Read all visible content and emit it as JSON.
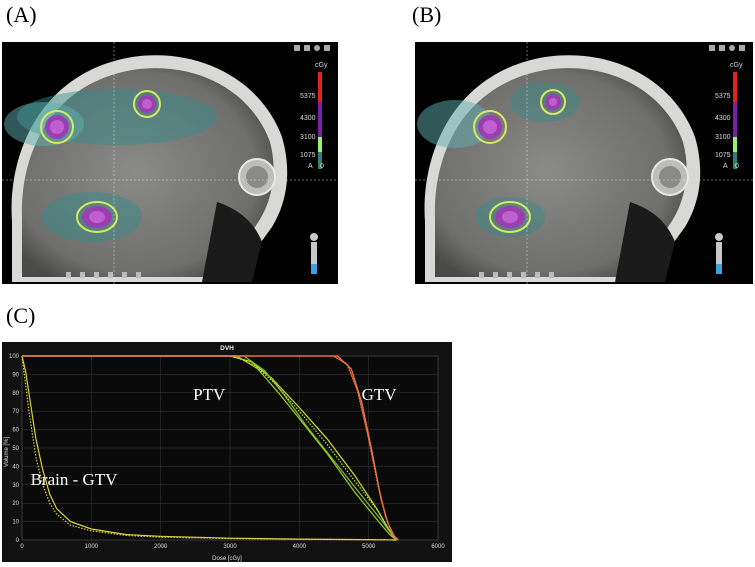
{
  "panels": {
    "a_label": "(A)",
    "b_label": "(B)",
    "c_label": "(C)"
  },
  "colorbar": {
    "unit": "cGy",
    "ticks": [
      "5375",
      "4300",
      "3100",
      "1075"
    ],
    "letter": "A",
    "zero": "0",
    "colors": [
      "#e0241c",
      "#7a1fa8",
      "#9cf06a",
      "#2f7f7a"
    ]
  },
  "chart_data": {
    "type": "line",
    "title": "DVH",
    "xlabel": "Dose [cGy]",
    "ylabel": "Volume [%]",
    "xlim": [
      0,
      6000
    ],
    "ylim": [
      0,
      100
    ],
    "xticks": [
      0,
      1000,
      2000,
      3000,
      4000,
      5000,
      6000
    ],
    "yticks": [
      0,
      10,
      20,
      30,
      40,
      50,
      60,
      70,
      80,
      90,
      100
    ],
    "grid": true,
    "annotations": [
      {
        "text": "PTV",
        "x": 2700,
        "y": 76
      },
      {
        "text": "GTV",
        "x": 5150,
        "y": 76
      },
      {
        "text": "Brain - GTV",
        "x": 750,
        "y": 30
      }
    ],
    "series": [
      {
        "group": "Brain - GTV",
        "color": "#d8d040",
        "style": "solid",
        "x": [
          0,
          50,
          100,
          200,
          300,
          400,
          500,
          700,
          1000,
          1500,
          2000,
          3000,
          4000,
          5000,
          5400
        ],
        "y": [
          100,
          92,
          80,
          55,
          38,
          25,
          17,
          10,
          6,
          3,
          2,
          1,
          0.5,
          0.2,
          0
        ]
      },
      {
        "group": "Brain - GTV",
        "color": "#d8d040",
        "style": "dotted",
        "x": [
          0,
          50,
          100,
          200,
          300,
          400,
          500,
          700,
          1000,
          1500,
          2000,
          3000,
          4000,
          5000,
          5400
        ],
        "y": [
          100,
          85,
          70,
          45,
          30,
          20,
          14,
          8,
          5,
          2.5,
          1.5,
          0.8,
          0.4,
          0.1,
          0
        ]
      },
      {
        "group": "PTV",
        "color": "#c8e030",
        "style": "solid",
        "x": [
          0,
          3000,
          3300,
          3600,
          4000,
          4400,
          4800,
          5100,
          5300,
          5400
        ],
        "y": [
          100,
          100,
          97,
          88,
          72,
          55,
          35,
          18,
          5,
          0
        ]
      },
      {
        "group": "PTV",
        "color": "#9ad030",
        "style": "solid",
        "x": [
          0,
          3100,
          3400,
          3700,
          4000,
          4400,
          4800,
          5100,
          5300,
          5400
        ],
        "y": [
          100,
          100,
          93,
          80,
          66,
          47,
          26,
          12,
          3,
          0
        ]
      },
      {
        "group": "PTV",
        "color": "#7cc030",
        "style": "solid",
        "x": [
          0,
          3200,
          3500,
          3800,
          4100,
          4500,
          4900,
          5200,
          5350,
          5400
        ],
        "y": [
          100,
          100,
          92,
          78,
          62,
          43,
          24,
          10,
          2,
          0
        ]
      },
      {
        "group": "PTV",
        "color": "#c8e030",
        "style": "dotted",
        "x": [
          0,
          3050,
          3350,
          3650,
          4000,
          4400,
          4800,
          5150,
          5320,
          5400
        ],
        "y": [
          100,
          100,
          95,
          85,
          70,
          52,
          32,
          15,
          4,
          0
        ]
      },
      {
        "group": "GTV",
        "color": "#e05a30",
        "style": "solid",
        "x": [
          0,
          4500,
          4700,
          4850,
          5000,
          5150,
          5250,
          5350,
          5420
        ],
        "y": [
          100,
          100,
          95,
          80,
          55,
          28,
          12,
          3,
          0
        ]
      },
      {
        "group": "GTV",
        "color": "#f08040",
        "style": "solid",
        "x": [
          0,
          4550,
          4750,
          4900,
          5050,
          5180,
          5280,
          5370,
          5430
        ],
        "y": [
          100,
          100,
          93,
          75,
          48,
          22,
          9,
          2,
          0
        ]
      },
      {
        "group": "GTV",
        "color": "#e06a40",
        "style": "dotted",
        "x": [
          0,
          4480,
          4680,
          4830,
          4980,
          5130,
          5240,
          5340,
          5410
        ],
        "y": [
          100,
          100,
          96,
          82,
          58,
          30,
          13,
          3,
          0
        ]
      }
    ]
  }
}
